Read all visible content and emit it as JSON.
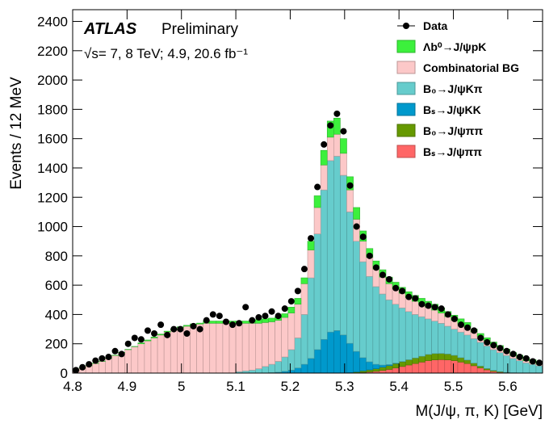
{
  "chart_data": {
    "type": "stacked-histogram",
    "annotations": [
      "ATLAS",
      "Preliminary",
      "√s= 7, 8 TeV; 4.9, 20.6 fb⁻¹"
    ],
    "xlabel": "M(J/ψ, π, K) [GeV]",
    "ylabel": "Events / 12 MeV",
    "xlim": [
      4.8,
      5.664
    ],
    "ylim": [
      0,
      2480
    ],
    "xticks": [
      4.8,
      4.9,
      5,
      5.1,
      5.2,
      5.3,
      5.4,
      5.5,
      5.6
    ],
    "yticks": [
      0,
      200,
      400,
      600,
      800,
      1000,
      1200,
      1400,
      1600,
      1800,
      2000,
      2200,
      2400
    ],
    "legend_position": "top-right",
    "bins": [
      4.8,
      4.812,
      4.824,
      4.836,
      4.848,
      4.86,
      4.872,
      4.884,
      4.896,
      4.908,
      4.92,
      4.932,
      4.944,
      4.956,
      4.968,
      4.98,
      4.992,
      5.004,
      5.016,
      5.028,
      5.04,
      5.052,
      5.064,
      5.076,
      5.088,
      5.1,
      5.112,
      5.124,
      5.136,
      5.148,
      5.16,
      5.172,
      5.184,
      5.196,
      5.208,
      5.22,
      5.232,
      5.244,
      5.256,
      5.268,
      5.28,
      5.292,
      5.304,
      5.316,
      5.328,
      5.34,
      5.352,
      5.364,
      5.376,
      5.388,
      5.4,
      5.412,
      5.424,
      5.436,
      5.448,
      5.46,
      5.472,
      5.484,
      5.496,
      5.508,
      5.52,
      5.532,
      5.544,
      5.556,
      5.568,
      5.58,
      5.592,
      5.604,
      5.616,
      5.628,
      5.64,
      5.652,
      5.664
    ],
    "points": {
      "name": "Data",
      "color": "#000000",
      "values": [
        20,
        40,
        60,
        85,
        100,
        110,
        150,
        130,
        200,
        240,
        230,
        290,
        270,
        330,
        260,
        300,
        300,
        270,
        320,
        300,
        360,
        400,
        390,
        350,
        330,
        340,
        450,
        360,
        380,
        390,
        420,
        390,
        440,
        490,
        560,
        710,
        920,
        1270,
        1560,
        1690,
        1770,
        1650,
        1280,
        1000,
        930,
        800,
        720,
        670,
        640,
        580,
        560,
        520,
        510,
        470,
        460,
        450,
        440,
        400,
        370,
        330,
        310,
        290,
        240,
        210,
        190,
        170,
        150,
        130,
        110,
        100,
        80,
        70
      ]
    },
    "series": [
      {
        "name": "Λb⁰→J/ψpK",
        "color": "#3cf03c",
        "values": [
          2,
          2,
          2,
          2,
          2,
          2,
          2,
          2,
          2,
          2,
          6,
          6,
          6,
          6,
          6,
          6,
          6,
          6,
          6,
          6,
          15,
          15,
          15,
          15,
          15,
          15,
          15,
          15,
          25,
          25,
          25,
          25,
          25,
          40,
          40,
          40,
          60,
          80,
          100,
          110,
          110,
          100,
          90,
          80,
          70,
          60,
          55,
          50,
          45,
          45,
          40,
          40,
          40,
          40,
          40,
          40,
          35,
          35,
          35,
          35,
          35,
          20,
          20,
          20,
          20,
          20,
          20,
          20,
          20,
          20,
          20,
          20
        ]
      },
      {
        "name": "Combinatorial BG",
        "color": "#fcc8c8",
        "values": [
          20,
          35,
          50,
          65,
          80,
          100,
          120,
          140,
          160,
          180,
          200,
          220,
          240,
          260,
          280,
          295,
          310,
          320,
          330,
          335,
          340,
          340,
          340,
          340,
          340,
          330,
          325,
          320,
          310,
          300,
          290,
          280,
          270,
          250,
          230,
          210,
          190,
          180,
          170,
          160,
          150,
          150,
          150,
          150,
          140,
          130,
          120,
          115,
          110,
          105,
          100,
          95,
          90,
          85,
          80,
          75,
          70,
          65,
          60,
          55,
          50,
          45,
          40,
          36,
          32,
          28,
          24,
          20,
          17,
          14,
          12,
          10
        ]
      },
      {
        "name": "B₀→J/ψKπ",
        "color": "#66cccc",
        "values": [
          0,
          0,
          0,
          0,
          0,
          0,
          0,
          0,
          0,
          0,
          0,
          0,
          0,
          0,
          0,
          0,
          0,
          0,
          0,
          0,
          0,
          0,
          0,
          0,
          0,
          10,
          15,
          20,
          30,
          45,
          57,
          74,
          98,
          140,
          205,
          340,
          550,
          790,
          1020,
          1170,
          1190,
          1090,
          897,
          752,
          655,
          583,
          530,
          485,
          442,
          402,
          366,
          329,
          297,
          270,
          243,
          222,
          206,
          190,
          179,
          175,
          171,
          167,
          162,
          154,
          142,
          130,
          115,
          98,
          85,
          70,
          60,
          50
        ]
      },
      {
        "name": "Bₛ→J/ψKK",
        "color": "#0099cc",
        "values": [
          0,
          0,
          0,
          0,
          0,
          0,
          0,
          0,
          0,
          0,
          0,
          0,
          0,
          0,
          0,
          0,
          0,
          0,
          0,
          0,
          0,
          0,
          0,
          0,
          0,
          0,
          0,
          0,
          0,
          0,
          3,
          6,
          12,
          20,
          35,
          60,
          100,
          160,
          230,
          280,
          290,
          260,
          200,
          140,
          90,
          55,
          30,
          15,
          7,
          3,
          1,
          0,
          0,
          0,
          0,
          0,
          0,
          0,
          0,
          0,
          0,
          0,
          0,
          0,
          0,
          0,
          0,
          0,
          0,
          0,
          0,
          0
        ]
      },
      {
        "name": "B₀→J/ψππ",
        "color": "#669900",
        "values": [
          0,
          0,
          0,
          0,
          0,
          0,
          0,
          0,
          0,
          0,
          0,
          0,
          0,
          0,
          0,
          0,
          0,
          0,
          0,
          0,
          0,
          0,
          0,
          0,
          0,
          0,
          0,
          0,
          0,
          0,
          0,
          0,
          0,
          0,
          0,
          0,
          0,
          0,
          0,
          0,
          0,
          0,
          3,
          6,
          10,
          14,
          18,
          22,
          26,
          30,
          33,
          36,
          38,
          40,
          42,
          43,
          42,
          40,
          36,
          30,
          24,
          18,
          13,
          9,
          6,
          4,
          2,
          1,
          0,
          0,
          0,
          0
        ]
      },
      {
        "name": "Bₛ→J/ψππ",
        "color": "#ff6666",
        "values": [
          0,
          0,
          0,
          0,
          0,
          0,
          0,
          0,
          0,
          0,
          0,
          0,
          0,
          0,
          0,
          0,
          0,
          0,
          0,
          0,
          0,
          0,
          0,
          0,
          0,
          0,
          0,
          0,
          0,
          0,
          0,
          0,
          0,
          0,
          0,
          0,
          0,
          0,
          0,
          0,
          0,
          0,
          0,
          2,
          5,
          8,
          12,
          18,
          25,
          35,
          45,
          55,
          65,
          75,
          85,
          90,
          92,
          90,
          85,
          75,
          65,
          50,
          35,
          22,
          12,
          6,
          3,
          1,
          0,
          0,
          0,
          0
        ]
      }
    ]
  }
}
